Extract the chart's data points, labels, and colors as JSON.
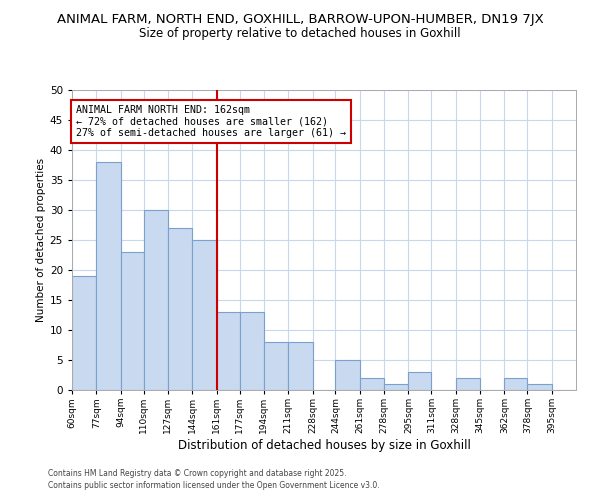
{
  "title": "ANIMAL FARM, NORTH END, GOXHILL, BARROW-UPON-HUMBER, DN19 7JX",
  "subtitle": "Size of property relative to detached houses in Goxhill",
  "xlabel": "Distribution of detached houses by size in Goxhill",
  "ylabel": "Number of detached properties",
  "bin_labels": [
    "60sqm",
    "77sqm",
    "94sqm",
    "110sqm",
    "127sqm",
    "144sqm",
    "161sqm",
    "177sqm",
    "194sqm",
    "211sqm",
    "228sqm",
    "244sqm",
    "261sqm",
    "278sqm",
    "295sqm",
    "311sqm",
    "328sqm",
    "345sqm",
    "362sqm",
    "378sqm",
    "395sqm"
  ],
  "bin_edges": [
    60,
    77,
    94,
    110,
    127,
    144,
    161,
    177,
    194,
    211,
    228,
    244,
    261,
    278,
    295,
    311,
    328,
    345,
    362,
    378,
    395
  ],
  "bar_heights": [
    19,
    38,
    23,
    30,
    27,
    25,
    13,
    13,
    8,
    8,
    0,
    5,
    2,
    1,
    3,
    0,
    2,
    0,
    2,
    1,
    0
  ],
  "bar_color": "#c9d9f0",
  "bar_edge_color": "#7aa0cc",
  "vline_x": 161,
  "vline_color": "#cc0000",
  "annotation_title": "ANIMAL FARM NORTH END: 162sqm",
  "annotation_line1": "← 72% of detached houses are smaller (162)",
  "annotation_line2": "27% of semi-detached houses are larger (61) →",
  "annotation_box_color": "#ffffff",
  "annotation_box_edge": "#cc0000",
  "ylim": [
    0,
    50
  ],
  "yticks": [
    0,
    5,
    10,
    15,
    20,
    25,
    30,
    35,
    40,
    45,
    50
  ],
  "footnote1": "Contains HM Land Registry data © Crown copyright and database right 2025.",
  "footnote2": "Contains public sector information licensed under the Open Government Licence v3.0.",
  "title_fontsize": 9.5,
  "subtitle_fontsize": 8.5,
  "background_color": "#ffffff",
  "grid_color": "#c8d8ec"
}
